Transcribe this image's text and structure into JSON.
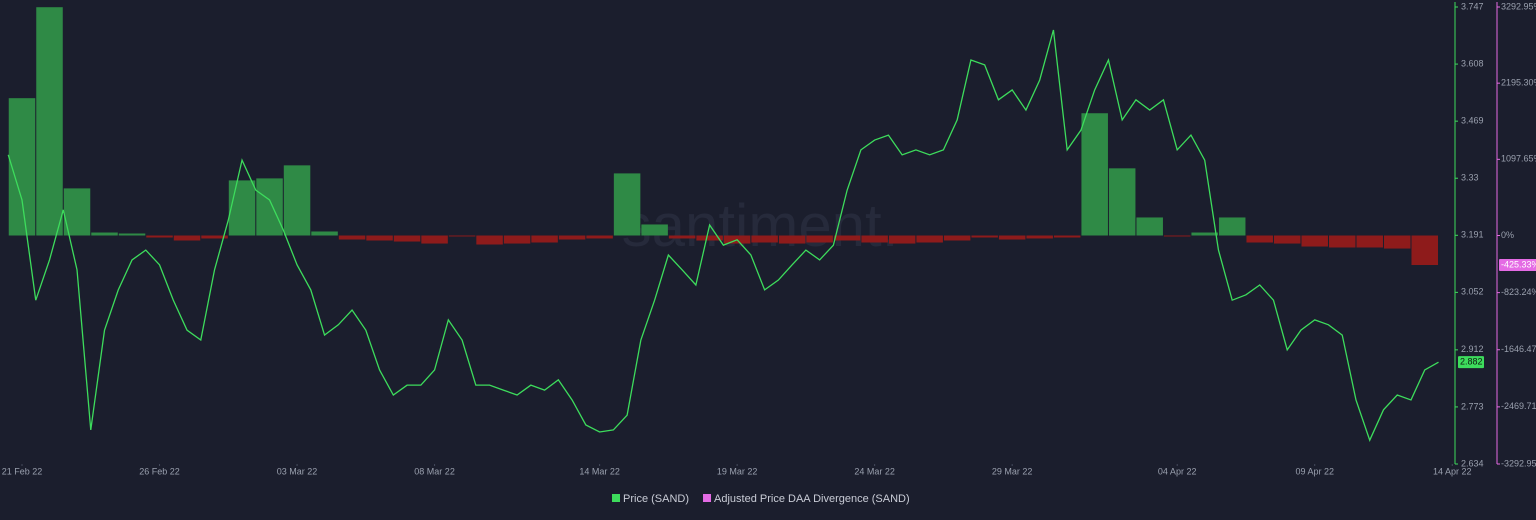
{
  "chart_data": {
    "type": "line",
    "watermark": "santiment.",
    "xlim": [
      -0.8,
      52.1
    ],
    "xticks": [
      {
        "value": 0,
        "label": "21 Feb 22"
      },
      {
        "value": 5,
        "label": "26 Feb 22"
      },
      {
        "value": 10,
        "label": "03 Mar 22"
      },
      {
        "value": 15,
        "label": "08 Mar 22"
      },
      {
        "value": 21,
        "label": "14 Mar 22"
      },
      {
        "value": 26,
        "label": "19 Mar 22"
      },
      {
        "value": 31,
        "label": "24 Mar 22"
      },
      {
        "value": 36,
        "label": "29 Mar 22"
      },
      {
        "value": 42,
        "label": "04 Apr 22"
      },
      {
        "value": 47,
        "label": "09 Apr 22"
      },
      {
        "value": 52,
        "label": "14 Apr 22"
      }
    ],
    "ylim": [
      2.634,
      3.747
    ],
    "yticks": [
      3.747,
      3.608,
      3.469,
      3.33,
      3.191,
      3.052,
      2.912,
      2.773,
      2.634
    ],
    "y2lim": [
      -3292.95,
      3292.95
    ],
    "y2ticks": [
      {
        "value": 3292.95,
        "label": "3292.95%"
      },
      {
        "value": 2195.3,
        "label": "2195.30%"
      },
      {
        "value": 1097.65,
        "label": "1097.65%"
      },
      {
        "value": 0,
        "label": "0%"
      },
      {
        "value": -823.24,
        "label": "-823.24%"
      },
      {
        "value": -1646.47,
        "label": "-1646.47%"
      },
      {
        "value": -2469.71,
        "label": "-2469.71%"
      },
      {
        "value": -3292.95,
        "label": "-3292.95%"
      }
    ],
    "series": [
      {
        "name": "Price (SAND)",
        "type": "line",
        "axis": "y",
        "color": "#3ddc5c",
        "x": [
          -0.5,
          0,
          0.5,
          1,
          1.5,
          2,
          2.5,
          3,
          3.5,
          4,
          4.5,
          5,
          5.5,
          6,
          6.5,
          7,
          7.5,
          8,
          8.5,
          9,
          9.5,
          10,
          10.5,
          11,
          11.5,
          12,
          12.5,
          13,
          13.5,
          14,
          14.5,
          15,
          15.5,
          16,
          16.5,
          17,
          17.5,
          18,
          18.5,
          19,
          19.5,
          20,
          20.5,
          21,
          21.5,
          22,
          22.5,
          23,
          23.5,
          24,
          24.5,
          25,
          25.5,
          26,
          26.5,
          27,
          27.5,
          28,
          28.5,
          29,
          29.5,
          30,
          30.5,
          31,
          31.5,
          32,
          32.5,
          33,
          33.5,
          34,
          34.5,
          35,
          35.5,
          36,
          36.5,
          37,
          37.5,
          38,
          38.5,
          39,
          39.5,
          40,
          40.5,
          41,
          41.5,
          42,
          42.5,
          43,
          43.5,
          44,
          44.5,
          45,
          45.5,
          46,
          46.5,
          47,
          47.5,
          48,
          48.5,
          49,
          49.5,
          50,
          50.5,
          51,
          51.5
        ],
        "values": [
          3.387,
          3.277,
          3.033,
          3.131,
          3.253,
          3.107,
          2.717,
          2.96,
          3.058,
          3.131,
          3.155,
          3.119,
          3.033,
          2.96,
          2.936,
          3.107,
          3.228,
          3.374,
          3.301,
          3.277,
          3.204,
          3.119,
          3.058,
          2.948,
          2.973,
          3.009,
          2.96,
          2.863,
          2.802,
          2.826,
          2.826,
          2.863,
          2.985,
          2.936,
          2.826,
          2.826,
          2.814,
          2.802,
          2.826,
          2.814,
          2.839,
          2.79,
          2.729,
          2.712,
          2.717,
          2.753,
          2.936,
          3.033,
          3.143,
          3.107,
          3.07,
          3.216,
          3.167,
          3.18,
          3.143,
          3.058,
          3.082,
          3.119,
          3.155,
          3.131,
          3.167,
          3.301,
          3.399,
          3.423,
          3.435,
          3.387,
          3.399,
          3.387,
          3.399,
          3.472,
          3.618,
          3.606,
          3.521,
          3.545,
          3.496,
          3.569,
          3.691,
          3.399,
          3.447,
          3.545,
          3.618,
          3.472,
          3.521,
          3.496,
          3.521,
          3.399,
          3.435,
          3.374,
          3.155,
          3.033,
          3.046,
          3.07,
          3.033,
          2.912,
          2.96,
          2.985,
          2.973,
          2.948,
          2.79,
          2.692,
          2.766,
          2.802,
          2.79,
          2.863,
          2.882
        ]
      },
      {
        "name": "Adjusted Price DAA Divergence (SAND)",
        "type": "bar",
        "axis": "y2",
        "color": "#e46be4",
        "positive_color": "#2f8a46",
        "negative_color": "#8e1b1b",
        "x": [
          0,
          1,
          2,
          3,
          4,
          5,
          6,
          7,
          8,
          9,
          10,
          11,
          12,
          13,
          14,
          15,
          16,
          17,
          18,
          19,
          20,
          21,
          22,
          23,
          24,
          25,
          26,
          27,
          28,
          29,
          30,
          31,
          32,
          33,
          34,
          35,
          36,
          37,
          38,
          39,
          40,
          41,
          42,
          43,
          44,
          45,
          46,
          47,
          48,
          49,
          50,
          51
        ],
        "values": [
          1979,
          3290,
          679,
          43,
          29,
          -29,
          -72,
          -43,
          794,
          823,
          1011,
          58,
          -58,
          -72,
          -87,
          -116,
          -14,
          -130,
          -116,
          -101,
          -58,
          -43,
          895,
          159,
          -43,
          -72,
          -116,
          -101,
          -116,
          -101,
          -72,
          -101,
          -116,
          -101,
          -72,
          -29,
          -58,
          -43,
          -29,
          1762,
          968,
          260,
          -14,
          43,
          260,
          -101,
          -116,
          -159,
          -173,
          -173,
          -188,
          -425.33
        ]
      }
    ],
    "badges": [
      {
        "axis": "y",
        "value": 2.882,
        "label": "2.882",
        "color": "#3ddc5c"
      },
      {
        "axis": "y2",
        "value": -425.33,
        "label": "-425.33%",
        "color": "#e46be4"
      }
    ]
  }
}
